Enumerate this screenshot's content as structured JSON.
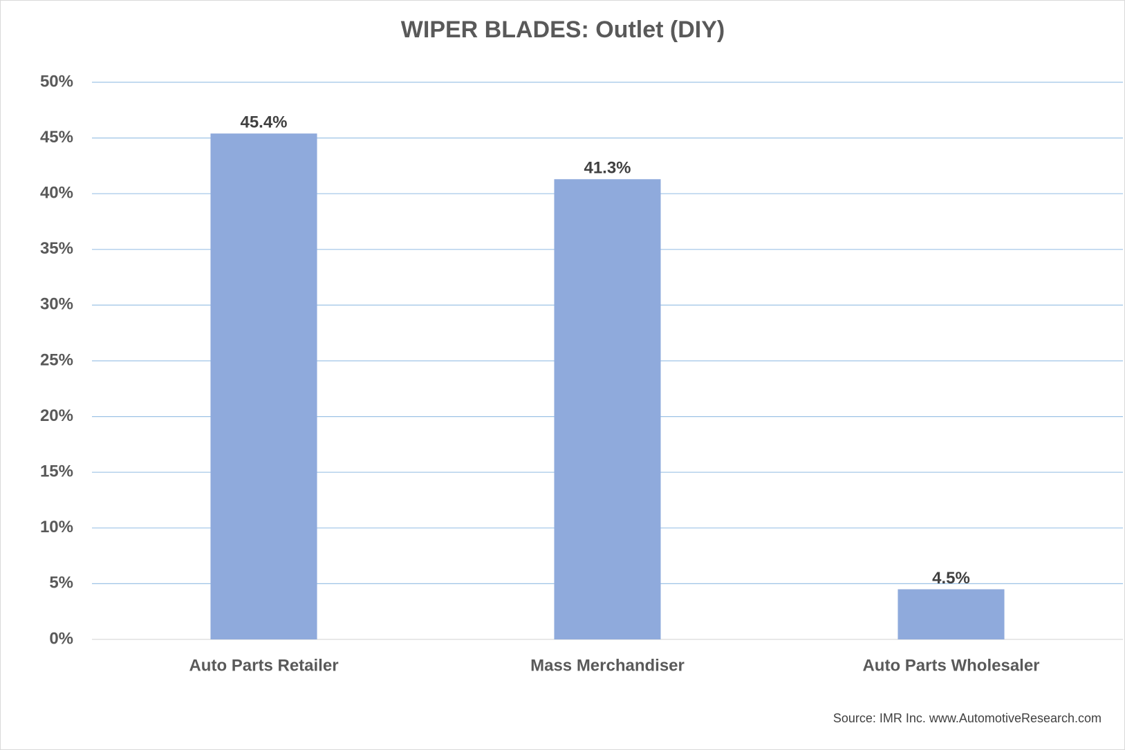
{
  "chart_data": {
    "type": "bar",
    "title": "WIPER BLADES: Outlet (DIY)",
    "categories": [
      "Auto Parts Retailer",
      "Mass Merchandiser",
      "Auto Parts Wholesaler"
    ],
    "values": [
      45.4,
      41.3,
      4.5
    ],
    "value_labels": [
      "45.4%",
      "41.3%",
      "4.5%"
    ],
    "color": "#8faadc",
    "ylim": [
      0,
      50
    ],
    "yticks": [
      {
        "value": 0,
        "label": "0%"
      },
      {
        "value": 5,
        "label": "5%"
      },
      {
        "value": 10,
        "label": "10%"
      },
      {
        "value": 15,
        "label": "15%"
      },
      {
        "value": 20,
        "label": "20%"
      },
      {
        "value": 25,
        "label": "25%"
      },
      {
        "value": 30,
        "label": "30%"
      },
      {
        "value": 35,
        "label": "35%"
      },
      {
        "value": 40,
        "label": "40%"
      },
      {
        "value": 45,
        "label": "45%"
      },
      {
        "value": 50,
        "label": "50%"
      }
    ],
    "grid": true,
    "annotation": "Source: IMR Inc. www.AutomotiveResearch.com"
  }
}
